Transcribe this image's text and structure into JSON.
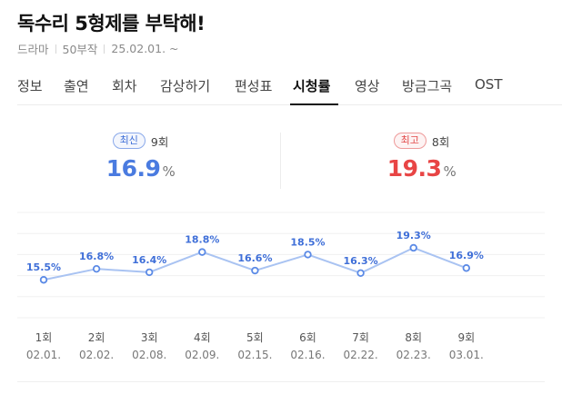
{
  "header": {
    "title": "독수리 5형제를 부탁해!",
    "meta": [
      "드라마",
      "50부작",
      "25.02.01. ~"
    ]
  },
  "tabs": [
    {
      "label": "정보",
      "active": false
    },
    {
      "label": "출연",
      "active": false
    },
    {
      "label": "회차",
      "active": false
    },
    {
      "label": "감상하기",
      "active": false
    },
    {
      "label": "편성표",
      "active": false
    },
    {
      "label": "시청률",
      "active": true
    },
    {
      "label": "영상",
      "active": false
    },
    {
      "label": "방금그곡",
      "active": false
    },
    {
      "label": "OST",
      "active": false
    }
  ],
  "stats": {
    "latest": {
      "badge": "최신",
      "episode": "9회",
      "value": "16.9",
      "unit": "%"
    },
    "best": {
      "badge": "최고",
      "episode": "8회",
      "value": "19.3",
      "unit": "%"
    }
  },
  "colors": {
    "line": "#a9c3f2",
    "point": "#5b8ae6",
    "label": "#3f6fd8",
    "latest": "#4a7be0",
    "best": "#e84545"
  },
  "chart_data": {
    "type": "line",
    "categories": [
      "1회",
      "2회",
      "3회",
      "4회",
      "5회",
      "6회",
      "7회",
      "8회",
      "9회"
    ],
    "dates": [
      "02.01.",
      "02.02.",
      "02.08.",
      "02.09.",
      "02.15.",
      "02.16.",
      "02.22.",
      "02.23.",
      "03.01."
    ],
    "values": [
      15.5,
      16.8,
      16.4,
      18.8,
      16.6,
      18.5,
      16.3,
      19.3,
      16.9
    ],
    "data_labels": [
      "15.5%",
      "16.8%",
      "16.4%",
      "18.8%",
      "16.6%",
      "18.5%",
      "16.3%",
      "19.3%",
      "16.9%"
    ],
    "ylim": [
      11,
      23.5
    ],
    "grid": true,
    "legend": "none"
  }
}
